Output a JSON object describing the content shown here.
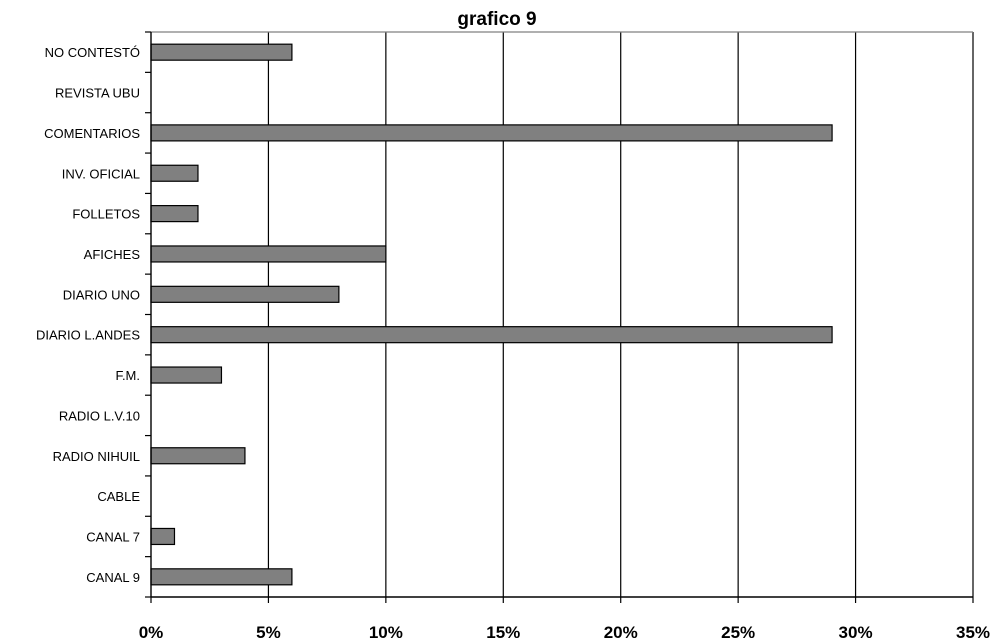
{
  "chart_data": {
    "type": "bar",
    "orientation": "horizontal",
    "title": "grafico 9",
    "xlabel": "",
    "ylabel": "",
    "xlim": [
      0,
      35
    ],
    "x_ticks": [
      "0%",
      "5%",
      "10%",
      "15%",
      "20%",
      "25%",
      "30%",
      "35%"
    ],
    "grid": "vertical",
    "categories": [
      "NO CONTESTÓ",
      "REVISTA UBU",
      "COMENTARIOS",
      "INV. OFICIAL",
      "FOLLETOS",
      "AFICHES",
      "DIARIO UNO",
      "DIARIO L.ANDES",
      "F.M.",
      "RADIO L.V.10",
      "RADIO NIHUIL",
      "CABLE",
      "CANAL 7",
      "CANAL 9"
    ],
    "values": [
      6,
      0,
      29,
      2,
      2,
      10,
      8,
      29,
      3,
      0,
      4,
      0,
      1,
      6
    ],
    "colors": {
      "bar_fill": "#808080",
      "bar_stroke": "#000000",
      "grid": "#000000",
      "axis": "#000000"
    }
  }
}
